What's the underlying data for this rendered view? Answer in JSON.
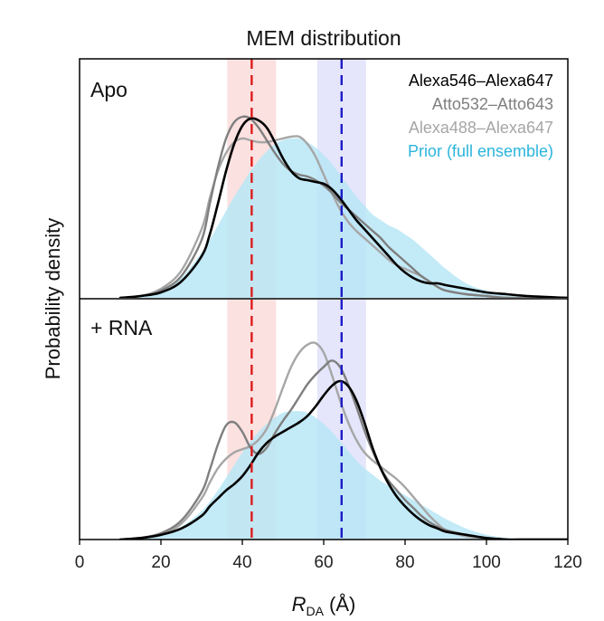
{
  "chart_data": {
    "type": "line",
    "title": "MEM distribution",
    "xlabel": "R_DA (Å)",
    "xlabel_main": "R",
    "xlabel_sub": "DA",
    "xlabel_unit": " (Å)",
    "ylabel": "Probability density",
    "xlim": [
      0,
      120
    ],
    "xticks": [
      0,
      20,
      40,
      60,
      80,
      100,
      120
    ],
    "xticklabels": [
      "0",
      "20",
      "40",
      "60",
      "80",
      "100",
      "120"
    ],
    "legend": [
      {
        "name": "Alexa546–Alexa647",
        "color": "#000000"
      },
      {
        "name": "Atto532–Atto643",
        "color": "#7f7f7f"
      },
      {
        "name": "Alexa488–Alexa647",
        "color": "#a6a6a6"
      },
      {
        "name": "Prior (full ensemble)",
        "color": "#2bb5dc"
      }
    ],
    "reference_lines": [
      {
        "x": 42.3,
        "band": [
          36.3,
          48.3
        ],
        "color": "#dd1c1c",
        "band_color": "#fbd7d7"
      },
      {
        "x": 64.4,
        "band": [
          58.4,
          70.4
        ],
        "color": "#1c1cc8",
        "band_color": "#dcdcfa"
      }
    ],
    "panels": [
      {
        "label": "Apo",
        "x": [
          10,
          15,
          20,
          25,
          30,
          32,
          34,
          36,
          38,
          40,
          42,
          44,
          46,
          48,
          50,
          52,
          54,
          56,
          58,
          60,
          62,
          64,
          66,
          68,
          70,
          72,
          74,
          76,
          78,
          80,
          82,
          84,
          86,
          88,
          90,
          95,
          100,
          105,
          110,
          120
        ],
        "series": [
          {
            "name": "Prior (full ensemble)",
            "values": [
              0.0,
              0.01,
              0.04,
              0.11,
              0.25,
              0.32,
              0.4,
              0.48,
              0.56,
              0.63,
              0.7,
              0.76,
              0.81,
              0.85,
              0.87,
              0.88,
              0.88,
              0.86,
              0.83,
              0.79,
              0.74,
              0.68,
              0.62,
              0.56,
              0.51,
              0.46,
              0.43,
              0.4,
              0.38,
              0.35,
              0.32,
              0.28,
              0.24,
              0.2,
              0.16,
              0.08,
              0.04,
              0.02,
              0.01,
              0.0
            ]
          },
          {
            "name": "Alexa546–Alexa647",
            "values": [
              0.0,
              0.01,
              0.03,
              0.09,
              0.23,
              0.35,
              0.52,
              0.7,
              0.85,
              0.95,
              0.99,
              0.98,
              0.94,
              0.86,
              0.77,
              0.7,
              0.66,
              0.65,
              0.64,
              0.63,
              0.6,
              0.55,
              0.49,
              0.43,
              0.38,
              0.33,
              0.28,
              0.23,
              0.18,
              0.14,
              0.11,
              0.09,
              0.08,
              0.08,
              0.07,
              0.05,
              0.03,
              0.02,
              0.01,
              0.0
            ]
          },
          {
            "name": "Atto532–Atto643",
            "values": [
              0.0,
              0.01,
              0.04,
              0.12,
              0.32,
              0.52,
              0.72,
              0.88,
              0.97,
              1.0,
              0.99,
              0.94,
              0.87,
              0.8,
              0.74,
              0.7,
              0.68,
              0.67,
              0.65,
              0.62,
              0.58,
              0.53,
              0.49,
              0.45,
              0.41,
              0.37,
              0.33,
              0.28,
              0.24,
              0.2,
              0.16,
              0.12,
              0.09,
              0.06,
              0.04,
              0.02,
              0.01,
              0.0,
              0.0,
              0.0
            ]
          },
          {
            "name": "Alexa488–Alexa647",
            "values": [
              0.0,
              0.01,
              0.05,
              0.15,
              0.38,
              0.55,
              0.7,
              0.8,
              0.86,
              0.88,
              0.87,
              0.86,
              0.86,
              0.87,
              0.88,
              0.89,
              0.89,
              0.85,
              0.78,
              0.68,
              0.58,
              0.49,
              0.42,
              0.37,
              0.33,
              0.29,
              0.25,
              0.21,
              0.18,
              0.16,
              0.14,
              0.12,
              0.09,
              0.06,
              0.04,
              0.02,
              0.01,
              0.0,
              0.0,
              0.0
            ]
          }
        ]
      },
      {
        "label": "+ RNA",
        "x": [
          10,
          15,
          20,
          25,
          30,
          32,
          34,
          36,
          38,
          40,
          42,
          44,
          46,
          48,
          50,
          52,
          54,
          56,
          58,
          60,
          62,
          64,
          66,
          68,
          70,
          72,
          74,
          76,
          78,
          80,
          82,
          84,
          86,
          88,
          90,
          95,
          100,
          105,
          110,
          120
        ],
        "series": [
          {
            "name": "Prior (full ensemble)",
            "values": [
              0.0,
              0.01,
              0.03,
              0.08,
              0.18,
              0.24,
              0.31,
              0.39,
              0.47,
              0.55,
              0.62,
              0.68,
              0.73,
              0.77,
              0.8,
              0.81,
              0.81,
              0.8,
              0.77,
              0.73,
              0.68,
              0.62,
              0.56,
              0.5,
              0.45,
              0.41,
              0.37,
              0.34,
              0.31,
              0.28,
              0.25,
              0.22,
              0.19,
              0.16,
              0.13,
              0.07,
              0.03,
              0.01,
              0.0,
              0.0
            ]
          },
          {
            "name": "Alexa546–Alexa647",
            "values": [
              0.0,
              0.01,
              0.03,
              0.07,
              0.15,
              0.21,
              0.26,
              0.31,
              0.35,
              0.4,
              0.47,
              0.55,
              0.61,
              0.65,
              0.68,
              0.71,
              0.74,
              0.78,
              0.84,
              0.91,
              0.97,
              1.0,
              0.97,
              0.88,
              0.74,
              0.58,
              0.45,
              0.35,
              0.27,
              0.21,
              0.16,
              0.12,
              0.09,
              0.07,
              0.05,
              0.03,
              0.01,
              0.0,
              0.0,
              0.0
            ]
          },
          {
            "name": "Atto532–Atto643",
            "values": [
              0.0,
              0.01,
              0.04,
              0.12,
              0.3,
              0.44,
              0.6,
              0.72,
              0.74,
              0.68,
              0.58,
              0.54,
              0.58,
              0.67,
              0.75,
              0.82,
              0.9,
              0.98,
              1.04,
              1.09,
              1.13,
              1.09,
              0.98,
              0.84,
              0.69,
              0.56,
              0.45,
              0.37,
              0.31,
              0.25,
              0.2,
              0.15,
              0.11,
              0.08,
              0.06,
              0.03,
              0.01,
              0.0,
              0.0,
              0.0
            ]
          },
          {
            "name": "Alexa488–Alexa647",
            "values": [
              0.0,
              0.01,
              0.03,
              0.1,
              0.26,
              0.36,
              0.45,
              0.51,
              0.55,
              0.57,
              0.59,
              0.63,
              0.7,
              0.82,
              0.96,
              1.09,
              1.18,
              1.23,
              1.24,
              1.18,
              1.04,
              0.88,
              0.74,
              0.63,
              0.55,
              0.5,
              0.46,
              0.42,
              0.38,
              0.33,
              0.27,
              0.21,
              0.15,
              0.1,
              0.06,
              0.02,
              0.01,
              0.0,
              0.0,
              0.0
            ]
          }
        ]
      }
    ]
  }
}
